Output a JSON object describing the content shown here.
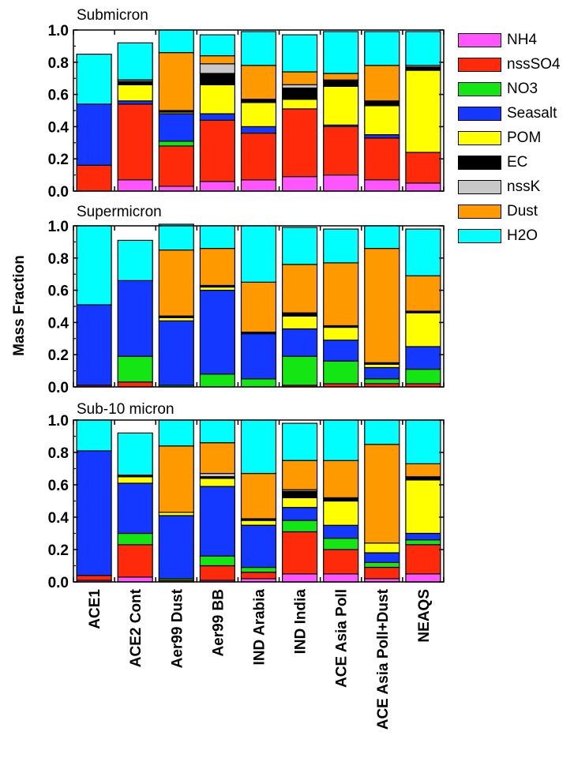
{
  "chart_data": {
    "type": "bar",
    "stacked": true,
    "ylabel": "Mass Fraction",
    "ylim": [
      0,
      1.0
    ],
    "yticks": [
      "0.0",
      "0.2",
      "0.4",
      "0.6",
      "0.8",
      "1.0"
    ],
    "categories": [
      "ACE1",
      "ACE2 Cont",
      "Aer99 Dust",
      "Aer99 BB",
      "IND Arabia",
      "IND India",
      "ACE Asia Poll",
      "ACE Asia Poll+Dust",
      "NEAQS"
    ],
    "legend": [
      {
        "name": "NH4",
        "color": "#ff55ff"
      },
      {
        "name": "nssSO4",
        "color": "#ff2a0a"
      },
      {
        "name": "NO3",
        "color": "#14e614"
      },
      {
        "name": "Seasalt",
        "color": "#1438ff"
      },
      {
        "name": "POM",
        "color": "#ffff00"
      },
      {
        "name": "EC",
        "color": "#000000"
      },
      {
        "name": "nssK",
        "color": "#c8c8c8"
      },
      {
        "name": "Dust",
        "color": "#ff9900"
      },
      {
        "name": "H2O",
        "color": "#00ffff"
      }
    ],
    "panels": [
      {
        "title": "Submicron",
        "series": [
          {
            "name": "NH4",
            "values": [
              0.0,
              0.07,
              0.03,
              0.06,
              0.07,
              0.09,
              0.1,
              0.07,
              0.05
            ]
          },
          {
            "name": "nssSO4",
            "values": [
              0.16,
              0.47,
              0.25,
              0.38,
              0.29,
              0.42,
              0.3,
              0.26,
              0.19
            ]
          },
          {
            "name": "NO3",
            "values": [
              0.0,
              0.0,
              0.03,
              0.0,
              0.0,
              0.0,
              0.0,
              0.0,
              0.0
            ]
          },
          {
            "name": "Seasalt",
            "values": [
              0.38,
              0.02,
              0.17,
              0.04,
              0.04,
              0.0,
              0.01,
              0.02,
              0.0
            ]
          },
          {
            "name": "POM",
            "values": [
              0.0,
              0.1,
              0.01,
              0.18,
              0.15,
              0.06,
              0.24,
              0.18,
              0.51
            ]
          },
          {
            "name": "EC",
            "values": [
              0.0,
              0.02,
              0.01,
              0.07,
              0.02,
              0.07,
              0.04,
              0.03,
              0.02
            ]
          },
          {
            "name": "nssK",
            "values": [
              0.0,
              0.01,
              0.0,
              0.06,
              0.0,
              0.02,
              0.0,
              0.0,
              0.01
            ]
          },
          {
            "name": "Dust",
            "values": [
              0.0,
              0.0,
              0.36,
              0.05,
              0.21,
              0.08,
              0.04,
              0.22,
              0.0
            ]
          },
          {
            "name": "H2O",
            "values": [
              0.31,
              0.23,
              0.14,
              0.13,
              0.21,
              0.23,
              0.26,
              0.21,
              0.21
            ]
          }
        ]
      },
      {
        "title": "Supermicron",
        "series": [
          {
            "name": "NH4",
            "values": [
              0.0,
              0.0,
              0.0,
              0.0,
              0.0,
              0.0,
              0.0,
              0.0,
              0.0
            ]
          },
          {
            "name": "nssSO4",
            "values": [
              0.01,
              0.03,
              0.0,
              0.0,
              0.0,
              0.01,
              0.02,
              0.02,
              0.02
            ]
          },
          {
            "name": "NO3",
            "values": [
              0.0,
              0.16,
              0.01,
              0.08,
              0.05,
              0.18,
              0.14,
              0.03,
              0.09
            ]
          },
          {
            "name": "Seasalt",
            "values": [
              0.5,
              0.47,
              0.4,
              0.52,
              0.28,
              0.17,
              0.13,
              0.07,
              0.14
            ]
          },
          {
            "name": "POM",
            "values": [
              0.0,
              0.0,
              0.02,
              0.02,
              0.0,
              0.08,
              0.08,
              0.02,
              0.21
            ]
          },
          {
            "name": "EC",
            "values": [
              0.0,
              0.0,
              0.01,
              0.01,
              0.01,
              0.02,
              0.01,
              0.01,
              0.01
            ]
          },
          {
            "name": "nssK",
            "values": [
              0.0,
              0.0,
              0.0,
              0.0,
              0.0,
              0.0,
              0.0,
              0.0,
              0.0
            ]
          },
          {
            "name": "Dust",
            "values": [
              0.0,
              0.0,
              0.41,
              0.23,
              0.31,
              0.3,
              0.39,
              0.71,
              0.22
            ]
          },
          {
            "name": "H2O",
            "values": [
              0.49,
              0.25,
              0.16,
              0.14,
              0.35,
              0.23,
              0.21,
              0.14,
              0.29
            ]
          }
        ]
      },
      {
        "title": "Sub-10 micron",
        "series": [
          {
            "name": "NH4",
            "values": [
              0.01,
              0.03,
              0.0,
              0.01,
              0.02,
              0.05,
              0.05,
              0.02,
              0.05
            ]
          },
          {
            "name": "nssSO4",
            "values": [
              0.03,
              0.2,
              0.01,
              0.09,
              0.04,
              0.26,
              0.15,
              0.07,
              0.18
            ]
          },
          {
            "name": "NO3",
            "values": [
              0.0,
              0.07,
              0.01,
              0.06,
              0.03,
              0.07,
              0.07,
              0.03,
              0.03
            ]
          },
          {
            "name": "Seasalt",
            "values": [
              0.77,
              0.31,
              0.39,
              0.43,
              0.26,
              0.08,
              0.08,
              0.06,
              0.04
            ]
          },
          {
            "name": "POM",
            "values": [
              0.0,
              0.04,
              0.02,
              0.05,
              0.03,
              0.06,
              0.15,
              0.06,
              0.33
            ]
          },
          {
            "name": "EC",
            "values": [
              0.0,
              0.01,
              0.0,
              0.01,
              0.01,
              0.04,
              0.02,
              0.0,
              0.02
            ]
          },
          {
            "name": "nssK",
            "values": [
              0.0,
              0.0,
              0.0,
              0.02,
              0.0,
              0.01,
              0.0,
              0.0,
              0.0
            ]
          },
          {
            "name": "Dust",
            "values": [
              0.0,
              0.0,
              0.41,
              0.19,
              0.28,
              0.18,
              0.23,
              0.61,
              0.08
            ]
          },
          {
            "name": "H2O",
            "values": [
              0.19,
              0.26,
              0.16,
              0.14,
              0.33,
              0.23,
              0.25,
              0.15,
              0.27
            ]
          }
        ]
      }
    ]
  }
}
